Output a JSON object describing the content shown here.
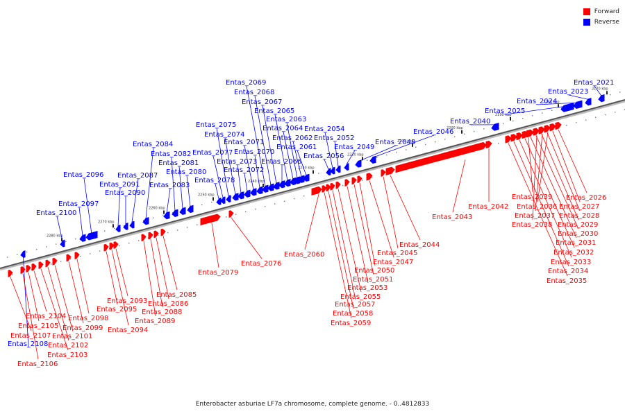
{
  "caption": "Enterobacter asburiae LF7a chromosome, complete genome. - 0..4812833",
  "legend": {
    "forward_label": "Forward",
    "forward_color": "#ff0000",
    "reverse_label": "Reverse",
    "reverse_color": "#0000ff"
  },
  "scale_labels": [
    "2170 kbp",
    "2180 kbp",
    "2190 kbp",
    "2200 kbp",
    "2210 kbp",
    "2220 kbp",
    "2230 kbp",
    "2240 kbp",
    "2250 kbp",
    "2260 kbp",
    "2270 kbp",
    "2280 kbp"
  ],
  "reverse_genes": [
    "Entas_2021",
    "Entas_2023",
    "Entas_2024",
    "Entas_2025",
    "Entas_2040",
    "Entas_2046",
    "Entas_2048",
    "Entas_2049",
    "Entas_2052",
    "Entas_2054",
    "Entas_2056",
    "Entas_2061",
    "Entas_2062",
    "Entas_2063",
    "Entas_2064",
    "Entas_2065",
    "Entas_2066",
    "Entas_2067",
    "Entas_2068",
    "Entas_2069",
    "Entas_2070",
    "Entas_2071",
    "Entas_2072",
    "Entas_2073",
    "Entas_2074",
    "Entas_2075",
    "Entas_2077",
    "Entas_2078",
    "Entas_2080",
    "Entas_2081",
    "Entas_2082",
    "Entas_2083",
    "Entas_2084",
    "Entas_2087",
    "Entas_2090",
    "Entas_2091",
    "Entas_2096",
    "Entas_2097",
    "Entas_2100",
    "Entas_2108"
  ],
  "forward_genes": [
    "Entas_2026",
    "Entas_2027",
    "Entas_2028",
    "Entas_2029",
    "Entas_2030",
    "Entas_2031",
    "Entas_2032",
    "Entas_2033",
    "Entas_2034",
    "Entas_2035",
    "Entas_2036",
    "Entas_2037",
    "Entas_2038",
    "Entas_2039",
    "Entas_2042",
    "Entas_2043",
    "Entas_2044",
    "Entas_2045",
    "Entas_2047",
    "Entas_2050",
    "Entas_2051",
    "Entas_2053",
    "Entas_2055",
    "Entas_2057",
    "Entas_2058",
    "Entas_2059",
    "Entas_2060",
    "Entas_2076",
    "Entas_2079",
    "Entas_2085",
    "Entas_2086",
    "Entas_2088",
    "Entas_2089",
    "Entas_2093",
    "Entas_2094",
    "Entas_2095",
    "Entas_2098",
    "Entas_2099",
    "Entas_2101",
    "Entas_2102",
    "Entas_2103",
    "Entas_2104",
    "Entas_2105",
    "Entas_2106",
    "Entas_2107"
  ]
}
